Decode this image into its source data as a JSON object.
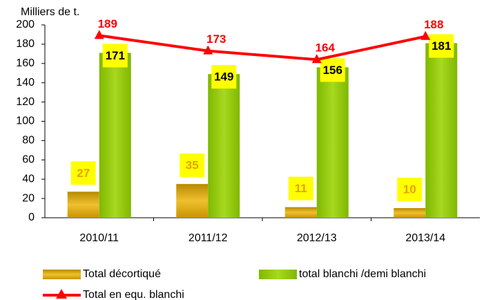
{
  "chart_data": {
    "type": "bar",
    "y_axis_label": "Milliers de t.",
    "categories": [
      "2010/11",
      "2011/12",
      "2012/13",
      "2013/14"
    ],
    "series": [
      {
        "name": "Total décortiqué",
        "color": "#d4a000",
        "values": [
          27,
          35,
          11,
          10
        ]
      },
      {
        "name": "total blanchi /demi blanchi",
        "color": "#8fc400",
        "values": [
          171,
          149,
          156,
          181
        ]
      },
      {
        "name": "Total en equ. blanchi",
        "type": "line",
        "color": "#ff0000",
        "values": [
          189,
          173,
          164,
          188
        ]
      }
    ],
    "ylim": [
      0,
      200
    ],
    "yticks": [
      0,
      20,
      40,
      60,
      80,
      100,
      120,
      140,
      160,
      180,
      200
    ],
    "grid": false
  }
}
